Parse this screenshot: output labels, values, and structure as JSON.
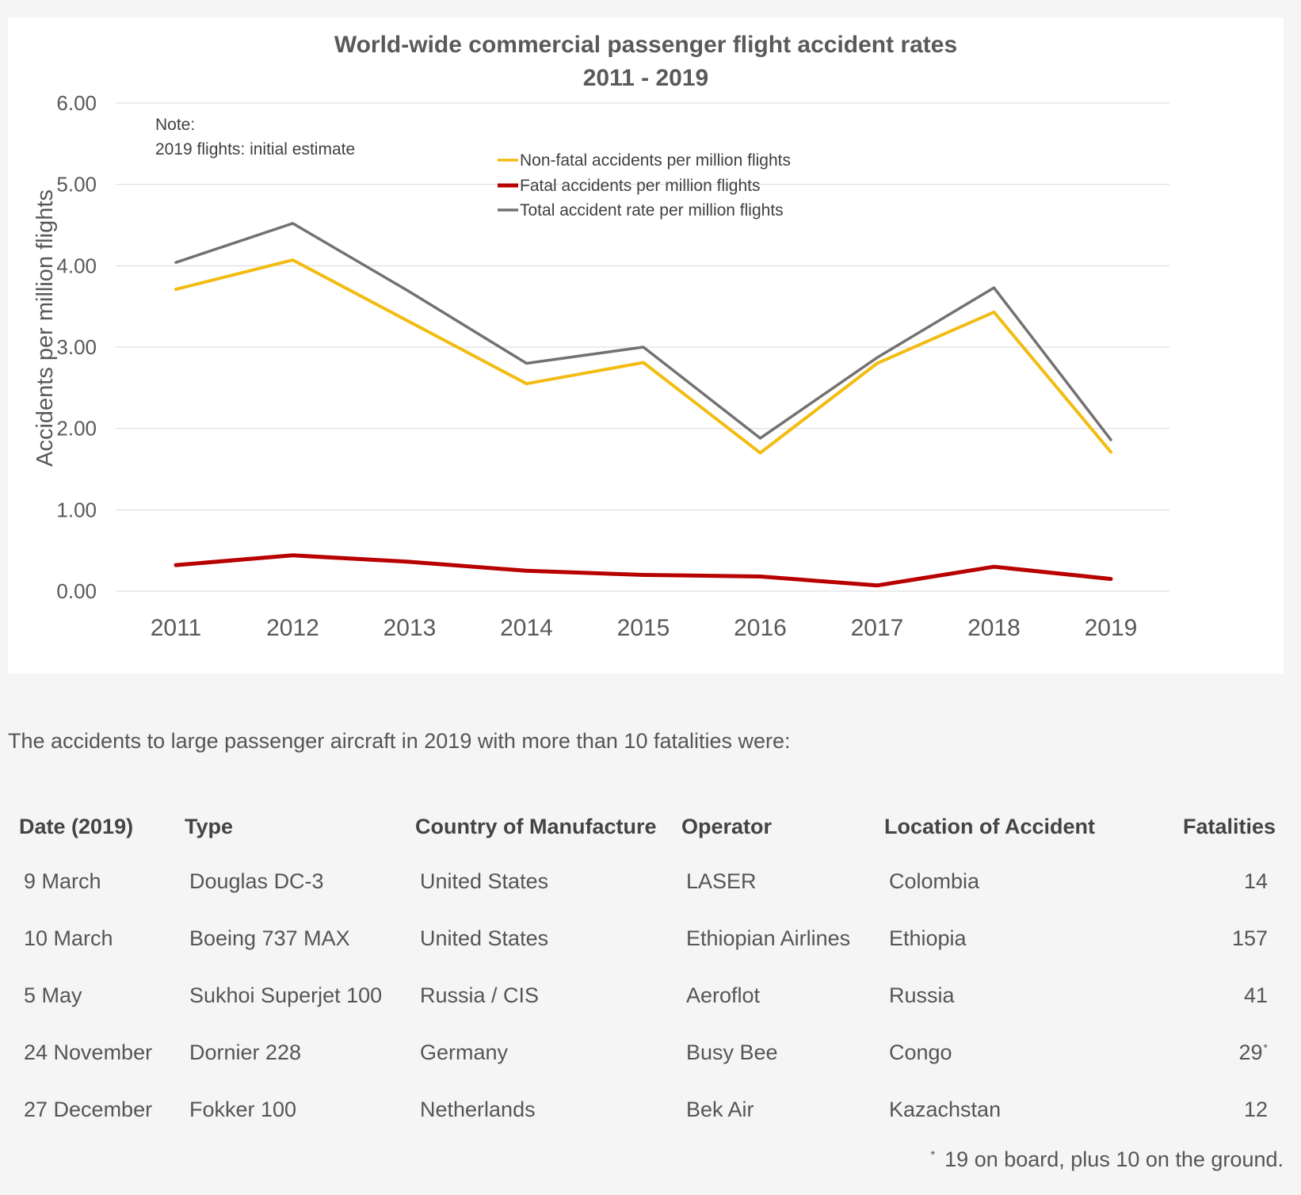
{
  "chart_data": {
    "type": "line",
    "title": [
      "World-wide commercial passenger flight accident rates",
      "2011 - 2019"
    ],
    "xlabel": "",
    "ylabel": "Accidents per million flights",
    "ylim": [
      0,
      6
    ],
    "yticks": [
      "0.00",
      "1.00",
      "2.00",
      "3.00",
      "4.00",
      "5.00",
      "6.00"
    ],
    "grid": true,
    "note": [
      "Note:",
      "2019 flights: initial estimate"
    ],
    "legend_position": "top-center",
    "categories": [
      "2011",
      "2012",
      "2013",
      "2014",
      "2015",
      "2016",
      "2017",
      "2018",
      "2019"
    ],
    "series": [
      {
        "name": "Non-fatal accidents per million flights",
        "color": "#f2bc12",
        "values": [
          3.71,
          4.07,
          3.31,
          2.55,
          2.81,
          1.7,
          2.8,
          3.43,
          1.71
        ]
      },
      {
        "name": "Fatal accidents per million flights",
        "color": "#b80000",
        "values": [
          0.32,
          0.44,
          0.36,
          0.25,
          0.2,
          0.18,
          0.07,
          0.3,
          0.15
        ]
      },
      {
        "name": "Total accident rate per million flights",
        "color": "#767171",
        "values": [
          4.04,
          4.52,
          3.68,
          2.8,
          3.0,
          1.88,
          2.87,
          3.73,
          1.86
        ]
      }
    ]
  },
  "intro_text": "The accidents to large passenger aircraft in 2019 with more than 10 fatalities were:",
  "table": {
    "headers": [
      "Date (2019)",
      "Type",
      "Country of Manufacture",
      "Operator",
      "Location of Accident",
      "Fatalities"
    ],
    "rows": [
      {
        "date": "9 March",
        "type": "Douglas DC-3",
        "country": "United States",
        "operator": "LASER",
        "location": "Colombia",
        "fatalities": "14",
        "mark": ""
      },
      {
        "date": "10 March",
        "type": "Boeing 737 MAX",
        "country": "United States",
        "operator": "Ethiopian Airlines",
        "location": "Ethiopia",
        "fatalities": "157",
        "mark": ""
      },
      {
        "date": "5 May",
        "type": "Sukhoi Superjet 100",
        "country": "Russia / CIS",
        "operator": "Aeroflot",
        "location": "Russia",
        "fatalities": "41",
        "mark": ""
      },
      {
        "date": "24 November",
        "type": "Dornier 228",
        "country": "Germany",
        "operator": "Busy Bee",
        "location": "Congo",
        "fatalities": "29",
        "mark": "*"
      },
      {
        "date": "27 December",
        "type": "Fokker 100",
        "country": "Netherlands",
        "operator": "Bek Air",
        "location": "Kazachstan",
        "fatalities": "12",
        "mark": ""
      }
    ]
  },
  "footnote": {
    "mark": "*",
    "text": "19 on board, plus 10 on the ground."
  }
}
